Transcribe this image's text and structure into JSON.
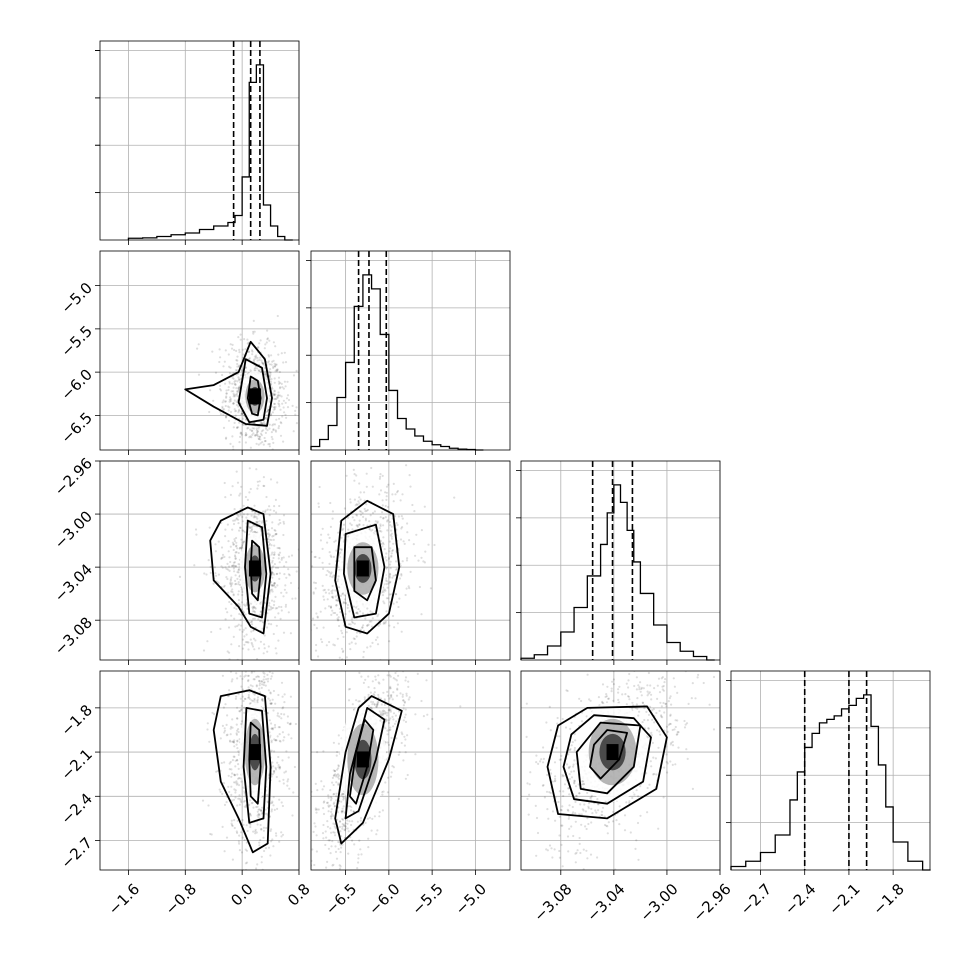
{
  "chart_data": {
    "type": "corner",
    "grid": true,
    "parameters": [
      {
        "range": [
          -2.0,
          0.8
        ],
        "ticks": [
          "−1.6",
          "−0.8",
          "0.0",
          "0.8"
        ],
        "tick_values": [
          -1.6,
          -0.8,
          0.0,
          0.8
        ],
        "quantiles": [
          -0.12,
          0.12,
          0.25
        ],
        "peak": 0.18,
        "hist_x": [
          -1.6,
          -1.4,
          -1.2,
          -1.0,
          -0.8,
          -0.6,
          -0.4,
          -0.2,
          -0.1,
          0.0,
          0.1,
          0.2,
          0.3,
          0.4,
          0.5,
          0.6
        ],
        "hist_y": [
          0.01,
          0.012,
          0.02,
          0.03,
          0.04,
          0.06,
          0.08,
          0.1,
          0.14,
          0.36,
          0.9,
          1.0,
          0.2,
          0.08,
          0.02,
          0.0
        ]
      },
      {
        "range": [
          -6.9,
          -4.6
        ],
        "ticks": [
          "−6.5",
          "−6.0",
          "−5.5",
          "−5.0"
        ],
        "tick_values": [
          -6.5,
          -6.0,
          -5.5,
          -5.0
        ],
        "quantiles": [
          -6.35,
          -6.23,
          -6.03
        ],
        "peak": -6.25,
        "hist_x": [
          -6.9,
          -6.8,
          -6.7,
          -6.6,
          -6.5,
          -6.4,
          -6.3,
          -6.2,
          -6.1,
          -6.0,
          -5.9,
          -5.8,
          -5.7,
          -5.6,
          -5.5,
          -5.4,
          -5.3,
          -5.2,
          -5.1,
          -5.0
        ],
        "hist_y": [
          0.02,
          0.06,
          0.14,
          0.3,
          0.5,
          0.82,
          1.0,
          0.92,
          0.66,
          0.34,
          0.18,
          0.12,
          0.08,
          0.05,
          0.03,
          0.02,
          0.01,
          0.005,
          0.003,
          0.0
        ]
      },
      {
        "range": [
          -3.11,
          -2.96
        ],
        "ticks": [
          "−3.08",
          "−3.04",
          "−3.00",
          "−2.96"
        ],
        "tick_values": [
          -3.08,
          -3.04,
          -3.0,
          -2.96
        ],
        "quantiles": [
          -3.056,
          -3.041,
          -3.026
        ],
        "peak": -3.041,
        "hist_x": [
          -3.11,
          -3.1,
          -3.09,
          -3.08,
          -3.07,
          -3.06,
          -3.05,
          -3.045,
          -3.04,
          -3.035,
          -3.03,
          -3.025,
          -3.02,
          -3.01,
          -3.0,
          -2.99,
          -2.98,
          -2.97
        ],
        "hist_y": [
          0.01,
          0.03,
          0.08,
          0.16,
          0.3,
          0.48,
          0.66,
          0.84,
          1.0,
          0.9,
          0.74,
          0.56,
          0.38,
          0.2,
          0.1,
          0.05,
          0.02,
          0.0
        ]
      },
      {
        "range": [
          -2.9,
          -1.55
        ],
        "ticks": [
          "−2.7",
          "−2.4",
          "−2.1",
          "−1.8"
        ],
        "tick_values": [
          -2.7,
          -2.4,
          -2.1,
          -1.8
        ],
        "quantiles": [
          -2.4,
          -2.1,
          -1.98
        ],
        "peak": -2.02,
        "hist_x": [
          -2.9,
          -2.8,
          -2.7,
          -2.6,
          -2.5,
          -2.45,
          -2.4,
          -2.35,
          -2.3,
          -2.25,
          -2.2,
          -2.15,
          -2.1,
          -2.05,
          -2.0,
          -1.95,
          -1.9,
          -1.85,
          -1.8,
          -1.7,
          -1.6
        ],
        "hist_y": [
          0.02,
          0.05,
          0.1,
          0.2,
          0.4,
          0.56,
          0.7,
          0.78,
          0.84,
          0.86,
          0.88,
          0.92,
          0.94,
          0.98,
          1.0,
          0.82,
          0.6,
          0.36,
          0.16,
          0.05,
          0.0
        ]
      }
    ],
    "pairs": [
      {
        "x": 0,
        "y": 1,
        "center": [
          0.18,
          -6.28
        ],
        "spread": [
          0.15,
          0.22
        ],
        "corr": -0.1,
        "contours": [
          [
            [
              0.12,
              -6.05
            ],
            [
              0.22,
              -6.1
            ],
            [
              0.26,
              -6.3
            ],
            [
              0.22,
              -6.5
            ],
            [
              0.14,
              -6.48
            ],
            [
              0.08,
              -6.3
            ]
          ],
          [
            [
              0.05,
              -5.85
            ],
            [
              0.28,
              -5.95
            ],
            [
              0.35,
              -6.3
            ],
            [
              0.3,
              -6.55
            ],
            [
              0.1,
              -6.58
            ],
            [
              -0.05,
              -6.35
            ]
          ],
          [
            [
              0.12,
              -5.65
            ],
            [
              0.32,
              -5.85
            ],
            [
              0.42,
              -6.3
            ],
            [
              0.35,
              -6.62
            ],
            [
              0.05,
              -6.6
            ],
            [
              -0.4,
              -6.4
            ],
            [
              -0.8,
              -6.2
            ],
            [
              -0.4,
              -6.15
            ],
            [
              -0.05,
              -6.0
            ]
          ]
        ]
      },
      {
        "x": 0,
        "y": 2,
        "center": [
          0.18,
          -3.041
        ],
        "spread": [
          0.16,
          0.02
        ],
        "corr": 0.0,
        "contours": [
          [
            [
              0.14,
              -3.02
            ],
            [
              0.24,
              -3.025
            ],
            [
              0.26,
              -3.045
            ],
            [
              0.22,
              -3.065
            ],
            [
              0.14,
              -3.06
            ],
            [
              0.12,
              -3.04
            ]
          ],
          [
            [
              0.08,
              -3.005
            ],
            [
              0.28,
              -3.01
            ],
            [
              0.34,
              -3.045
            ],
            [
              0.28,
              -3.078
            ],
            [
              0.1,
              -3.075
            ],
            [
              0.04,
              -3.04
            ]
          ],
          [
            [
              -0.3,
              -3.005
            ],
            [
              0.08,
              -2.995
            ],
            [
              0.3,
              -3.0
            ],
            [
              0.4,
              -3.045
            ],
            [
              0.3,
              -3.09
            ],
            [
              0.12,
              -3.085
            ],
            [
              -0.05,
              -3.07
            ],
            [
              -0.4,
              -3.05
            ],
            [
              -0.45,
              -3.02
            ]
          ]
        ]
      },
      {
        "x": 0,
        "y": 3,
        "center": [
          0.18,
          -2.1
        ],
        "spread": [
          0.16,
          0.25
        ],
        "corr": 0.0,
        "contours": [
          [
            [
              0.12,
              -1.9
            ],
            [
              0.24,
              -1.95
            ],
            [
              0.26,
              -2.2
            ],
            [
              0.22,
              -2.45
            ],
            [
              0.12,
              -2.4
            ],
            [
              0.1,
              -2.15
            ]
          ],
          [
            [
              0.06,
              -1.8
            ],
            [
              0.28,
              -1.82
            ],
            [
              0.34,
              -2.2
            ],
            [
              0.3,
              -2.55
            ],
            [
              0.1,
              -2.58
            ],
            [
              0.02,
              -2.2
            ]
          ],
          [
            [
              -0.3,
              -1.72
            ],
            [
              0.1,
              -1.68
            ],
            [
              0.32,
              -1.72
            ],
            [
              0.4,
              -2.2
            ],
            [
              0.36,
              -2.72
            ],
            [
              0.15,
              -2.78
            ],
            [
              -0.05,
              -2.55
            ],
            [
              -0.3,
              -2.3
            ],
            [
              -0.4,
              -1.95
            ]
          ]
        ]
      },
      {
        "x": 1,
        "y": 2,
        "center": [
          -6.3,
          -3.041
        ],
        "spread": [
          0.2,
          0.022
        ],
        "corr": 0.3,
        "contours": [
          [
            [
              -6.4,
              -3.025
            ],
            [
              -6.2,
              -3.025
            ],
            [
              -6.15,
              -3.05
            ],
            [
              -6.25,
              -3.065
            ],
            [
              -6.4,
              -3.058
            ]
          ],
          [
            [
              -6.5,
              -3.015
            ],
            [
              -6.15,
              -3.008
            ],
            [
              -6.05,
              -3.04
            ],
            [
              -6.15,
              -3.075
            ],
            [
              -6.4,
              -3.078
            ],
            [
              -6.52,
              -3.045
            ]
          ],
          [
            [
              -6.55,
              -3.005
            ],
            [
              -6.25,
              -2.99
            ],
            [
              -5.95,
              -3.0
            ],
            [
              -5.88,
              -3.04
            ],
            [
              -6.0,
              -3.075
            ],
            [
              -6.25,
              -3.09
            ],
            [
              -6.5,
              -3.085
            ],
            [
              -6.62,
              -3.05
            ]
          ]
        ]
      },
      {
        "x": 1,
        "y": 3,
        "center": [
          -6.3,
          -2.15
        ],
        "spread": [
          0.2,
          0.27
        ],
        "corr": 0.75,
        "contours": [
          [
            [
              -6.28,
              -1.88
            ],
            [
              -6.18,
              -1.95
            ],
            [
              -6.25,
              -2.2
            ],
            [
              -6.38,
              -2.45
            ],
            [
              -6.45,
              -2.4
            ],
            [
              -6.38,
              -2.1
            ]
          ],
          [
            [
              -6.25,
              -1.8
            ],
            [
              -6.05,
              -1.88
            ],
            [
              -6.15,
              -2.15
            ],
            [
              -6.35,
              -2.5
            ],
            [
              -6.5,
              -2.55
            ],
            [
              -6.45,
              -2.25
            ]
          ],
          [
            [
              -6.2,
              -1.72
            ],
            [
              -5.85,
              -1.82
            ],
            [
              -6.0,
              -2.15
            ],
            [
              -6.3,
              -2.58
            ],
            [
              -6.55,
              -2.72
            ],
            [
              -6.62,
              -2.55
            ],
            [
              -6.5,
              -2.1
            ],
            [
              -6.35,
              -1.8
            ]
          ]
        ]
      },
      {
        "x": 2,
        "y": 3,
        "center": [
          -3.041,
          -2.1
        ],
        "spread": [
          0.02,
          0.25
        ],
        "corr": 0.55,
        "contours": [
          [
            [
              -3.045,
              -1.95
            ],
            [
              -3.03,
              -1.97
            ],
            [
              -3.036,
              -2.15
            ],
            [
              -3.05,
              -2.28
            ],
            [
              -3.058,
              -2.2
            ],
            [
              -3.055,
              -2.05
            ]
          ],
          [
            [
              -3.05,
              -1.9
            ],
            [
              -3.02,
              -1.92
            ],
            [
              -3.025,
              -2.2
            ],
            [
              -3.045,
              -2.38
            ],
            [
              -3.065,
              -2.35
            ],
            [
              -3.068,
              -2.1
            ]
          ],
          [
            [
              -3.055,
              -1.85
            ],
            [
              -3.025,
              -1.87
            ],
            [
              -3.012,
              -2.0
            ],
            [
              -3.018,
              -2.3
            ],
            [
              -3.045,
              -2.45
            ],
            [
              -3.07,
              -2.42
            ],
            [
              -3.078,
              -2.2
            ],
            [
              -3.072,
              -1.98
            ]
          ],
          [
            [
              -3.06,
              -1.8
            ],
            [
              -3.015,
              -1.79
            ],
            [
              -3.0,
              -2.0
            ],
            [
              -3.008,
              -2.35
            ],
            [
              -3.045,
              -2.55
            ],
            [
              -3.082,
              -2.52
            ],
            [
              -3.09,
              -2.2
            ],
            [
              -3.082,
              -1.92
            ]
          ]
        ]
      }
    ]
  }
}
